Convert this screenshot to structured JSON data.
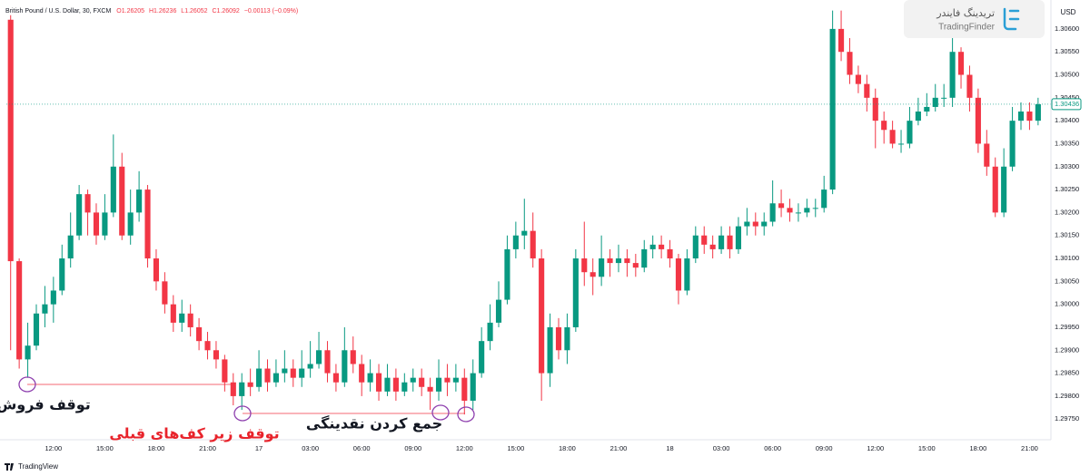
{
  "chart_data": {
    "type": "candlestick",
    "header_title": "British Pound / U.S. Dollar, 30, FXCM",
    "header_values": [
      "O1.26205",
      "H1.26236",
      "L1.26052",
      "C1.26092",
      "−0.00113 (−0.09%)"
    ],
    "currency": "USD",
    "logo_fa": "تریدینگ فایندر",
    "logo_en": "TradingFinder",
    "footer": "TradingView",
    "annotations": [
      "توقف فروش",
      "توقف زیر کف‌های قبلی",
      "جمع کردن نقدینگی"
    ],
    "up_color": "#089981",
    "down_color": "#f23645",
    "grid": false,
    "xlim": [
      -0.5,
      121.5
    ],
    "ylim": [
      1.29705,
      1.30663
    ],
    "xticks": [
      {
        "value": 5,
        "label": "12:00"
      },
      {
        "value": 11,
        "label": "15:00"
      },
      {
        "value": 17,
        "label": "18:00"
      },
      {
        "value": 23,
        "label": "21:00"
      },
      {
        "value": 29,
        "label": "17"
      },
      {
        "value": 35,
        "label": "03:00"
      },
      {
        "value": 41,
        "label": "06:00"
      },
      {
        "value": 47,
        "label": "09:00"
      },
      {
        "value": 53,
        "label": "12:00"
      },
      {
        "value": 59,
        "label": "15:00"
      },
      {
        "value": 65,
        "label": "18:00"
      },
      {
        "value": 71,
        "label": "21:00"
      },
      {
        "value": 77,
        "label": "18"
      },
      {
        "value": 83,
        "label": "03:00"
      },
      {
        "value": 89,
        "label": "06:00"
      },
      {
        "value": 95,
        "label": "09:00"
      },
      {
        "value": 101,
        "label": "12:00"
      },
      {
        "value": 107,
        "label": "15:00"
      },
      {
        "value": 113,
        "label": "18:00"
      },
      {
        "value": 119,
        "label": "21:00"
      }
    ],
    "yticks": [
      {
        "value": 1.306,
        "label": "1.30600"
      },
      {
        "value": 1.3055,
        "label": "1.30550"
      },
      {
        "value": 1.305,
        "label": "1.30500"
      },
      {
        "value": 1.3045,
        "label": "1.30450"
      },
      {
        "value": 1.304,
        "label": "1.30400"
      },
      {
        "value": 1.3035,
        "label": "1.30350"
      },
      {
        "value": 1.303,
        "label": "1.30300"
      },
      {
        "value": 1.3025,
        "label": "1.30250"
      },
      {
        "value": 1.302,
        "label": "1.30200"
      },
      {
        "value": 1.3015,
        "label": "1.30150"
      },
      {
        "value": 1.301,
        "label": "1.30100"
      },
      {
        "value": 1.3005,
        "label": "1.30050"
      },
      {
        "value": 1.3,
        "label": "1.30000"
      },
      {
        "value": 1.2995,
        "label": "1.29950"
      },
      {
        "value": 1.299,
        "label": "1.29900"
      },
      {
        "value": 1.2985,
        "label": "1.29850"
      },
      {
        "value": 1.298,
        "label": "1.29800"
      },
      {
        "value": 1.2975,
        "label": "1.29750"
      }
    ],
    "open": [
      1.3062,
      1.30094,
      1.2988,
      1.2991,
      1.2998,
      1.3,
      1.3003,
      1.301,
      1.3015,
      1.3024,
      1.302,
      1.3015,
      1.302,
      1.303,
      1.3015,
      1.302,
      1.3025,
      1.301,
      1.3005,
      1.3,
      1.2996,
      1.2998,
      1.2995,
      1.2992,
      1.299,
      1.2988,
      1.2983,
      1.298,
      1.2983,
      1.2982,
      1.2986,
      1.2983,
      1.2985,
      1.2986,
      1.2984,
      1.2986,
      1.2987,
      1.299,
      1.2985,
      1.2983,
      1.299,
      1.2987,
      1.2983,
      1.2985,
      1.2981,
      1.2984,
      1.2981,
      1.2983,
      1.2984,
      1.2982,
      1.2981,
      1.2984,
      1.2983,
      1.2984,
      1.2979,
      1.2985,
      1.2992,
      1.2996,
      1.3001,
      1.3012,
      1.3015,
      1.3016,
      1.301,
      1.2985,
      1.2995,
      1.299,
      1.2995,
      1.301,
      1.3007,
      1.3006,
      1.301,
      1.3009,
      1.301,
      1.3009,
      1.3008,
      1.3012,
      1.3013,
      1.3012,
      1.301,
      1.3003,
      1.301,
      1.3015,
      1.3013,
      1.3012,
      1.3015,
      1.3012,
      1.3017,
      1.3018,
      1.3017,
      1.3018,
      1.3022,
      1.3021,
      1.302,
      1.302,
      1.3021,
      1.3021,
      1.3025,
      1.306,
      1.3055,
      1.305,
      1.3048,
      1.3045,
      1.304,
      1.3038,
      1.3035,
      1.3035,
      1.304,
      1.3042,
      1.3043,
      1.3045,
      1.3045,
      1.3055,
      1.305,
      1.3045,
      1.3035,
      1.303,
      1.302,
      1.303,
      1.304,
      1.3042,
      1.304
    ],
    "high": [
      1.3063,
      1.301,
      1.2996,
      1.3,
      1.3004,
      1.3006,
      1.3013,
      1.302,
      1.3026,
      1.3025,
      1.3022,
      1.3024,
      1.3037,
      1.3033,
      1.3025,
      1.3029,
      1.3026,
      1.3012,
      1.3007,
      1.3002,
      1.3001,
      1.3,
      1.2997,
      1.2994,
      1.2992,
      1.2989,
      1.2985,
      1.2985,
      1.2986,
      1.299,
      1.2988,
      1.2988,
      1.299,
      1.2988,
      1.299,
      1.2992,
      1.2994,
      1.2992,
      1.2987,
      1.2995,
      1.2993,
      1.2989,
      1.2988,
      1.2987,
      1.2987,
      1.2986,
      1.2985,
      1.2986,
      1.2986,
      1.2984,
      1.2988,
      1.2987,
      1.2987,
      1.2986,
      1.2988,
      1.2995,
      1.3,
      1.3005,
      1.3015,
      1.3018,
      1.3023,
      1.302,
      1.3012,
      1.2998,
      1.2997,
      1.2998,
      1.3012,
      1.3018,
      1.301,
      1.3015,
      1.3012,
      1.3013,
      1.3012,
      1.3011,
      1.3014,
      1.3015,
      1.3015,
      1.3014,
      1.3011,
      1.3012,
      1.3017,
      1.3017,
      1.3015,
      1.3017,
      1.3017,
      1.3019,
      1.3021,
      1.302,
      1.302,
      1.3027,
      1.3025,
      1.3023,
      1.3022,
      1.3023,
      1.3023,
      1.3028,
      1.3064,
      1.3064,
      1.3058,
      1.3052,
      1.305,
      1.3047,
      1.3042,
      1.304,
      1.3038,
      1.3043,
      1.3045,
      1.3046,
      1.3048,
      1.3048,
      1.3058,
      1.3056,
      1.3052,
      1.3047,
      1.3038,
      1.3032,
      1.3034,
      1.3043,
      1.3044,
      1.3044,
      1.3045
    ],
    "low": [
      1.299,
      1.2986,
      1.2984,
      1.299,
      1.2995,
      1.2996,
      1.3002,
      1.3008,
      1.3014,
      1.3015,
      1.3013,
      1.3014,
      1.3019,
      1.3014,
      1.3013,
      1.3018,
      1.3008,
      1.3003,
      1.2998,
      1.2994,
      1.2994,
      1.2993,
      1.299,
      1.2988,
      1.2986,
      1.2981,
      1.2978,
      1.2977,
      1.298,
      1.2981,
      1.2981,
      1.2982,
      1.2983,
      1.2982,
      1.2982,
      1.2984,
      1.2986,
      1.2983,
      1.2981,
      1.2982,
      1.2985,
      1.298,
      1.2981,
      1.2979,
      1.298,
      1.2979,
      1.298,
      1.2981,
      1.298,
      1.2977,
      1.2979,
      1.298,
      1.2981,
      1.2976,
      1.2977,
      1.2984,
      1.299,
      1.2995,
      1.3,
      1.301,
      1.3012,
      1.3008,
      1.2979,
      1.2982,
      1.2988,
      1.2987,
      1.2994,
      1.3004,
      1.3002,
      1.3004,
      1.3006,
      1.3007,
      1.3006,
      1.3006,
      1.3007,
      1.301,
      1.301,
      1.3008,
      1.3,
      1.3002,
      1.3009,
      1.3011,
      1.301,
      1.3011,
      1.301,
      1.3011,
      1.3015,
      1.3015,
      1.3015,
      1.3017,
      1.3019,
      1.3018,
      1.3018,
      1.3019,
      1.3019,
      1.302,
      1.3024,
      1.3053,
      1.3048,
      1.3046,
      1.3042,
      1.3034,
      1.3035,
      1.3034,
      1.3033,
      1.3034,
      1.3039,
      1.3041,
      1.3042,
      1.3043,
      1.3043,
      1.3047,
      1.3042,
      1.3033,
      1.3028,
      1.3019,
      1.3019,
      1.3029,
      1.3038,
      1.3038,
      1.3039
    ],
    "close": [
      1.30094,
      1.2988,
      1.2991,
      1.2998,
      1.3,
      1.3003,
      1.301,
      1.3015,
      1.3024,
      1.302,
      1.3015,
      1.302,
      1.303,
      1.3015,
      1.302,
      1.3025,
      1.301,
      1.3005,
      1.3,
      1.2996,
      1.2998,
      1.2995,
      1.2992,
      1.299,
      1.2988,
      1.2983,
      1.298,
      1.2983,
      1.2982,
      1.2986,
      1.2983,
      1.2985,
      1.2986,
      1.2984,
      1.2986,
      1.2987,
      1.299,
      1.2985,
      1.2983,
      1.299,
      1.2987,
      1.2983,
      1.2985,
      1.2981,
      1.2984,
      1.2981,
      1.2983,
      1.2984,
      1.2982,
      1.2981,
      1.2984,
      1.2983,
      1.2984,
      1.2979,
      1.2985,
      1.2992,
      1.2996,
      1.3001,
      1.3012,
      1.3015,
      1.3016,
      1.301,
      1.2985,
      1.2995,
      1.299,
      1.2995,
      1.301,
      1.3007,
      1.3006,
      1.301,
      1.3009,
      1.301,
      1.3009,
      1.3008,
      1.3012,
      1.3013,
      1.3012,
      1.301,
      1.3003,
      1.301,
      1.3015,
      1.3013,
      1.3012,
      1.3015,
      1.3012,
      1.3017,
      1.3018,
      1.3017,
      1.3018,
      1.3022,
      1.3021,
      1.302,
      1.302,
      1.3021,
      1.3021,
      1.3025,
      1.306,
      1.3055,
      1.305,
      1.3048,
      1.3045,
      1.304,
      1.3038,
      1.3035,
      1.3035,
      1.304,
      1.3042,
      1.3043,
      1.3045,
      1.3045,
      1.3055,
      1.305,
      1.3045,
      1.3035,
      1.303,
      1.302,
      1.303,
      1.304,
      1.3042,
      1.304,
      1.30436
    ]
  }
}
